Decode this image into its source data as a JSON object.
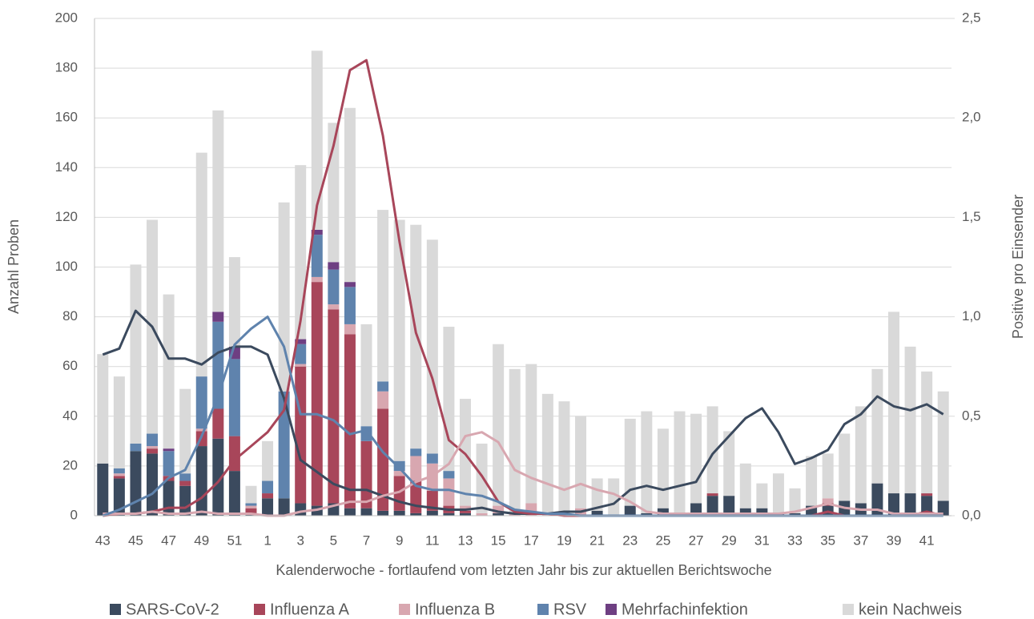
{
  "chart_data": {
    "type": "bar",
    "stacked": true,
    "ylabel": "Anzahl Proben",
    "y2label": "Positive pro Einsender",
    "xlabel": "Kalenderwoche - fortlaufend vom letzten Jahr bis zur aktuellen Berichtswoche",
    "categories": [
      "43",
      null,
      "45",
      null,
      "47",
      null,
      "49",
      null,
      "51",
      null,
      "1",
      null,
      "3",
      null,
      "5",
      null,
      "7",
      null,
      "9",
      null,
      "11",
      null,
      "13",
      null,
      "15",
      null,
      "17",
      null,
      "19",
      null,
      "21",
      null,
      "23",
      null,
      "25",
      null,
      "27",
      null,
      "29",
      null,
      "31",
      null,
      "33",
      null,
      "35",
      null,
      "37",
      null,
      "39",
      null,
      "41",
      null
    ],
    "ylim": [
      0,
      200
    ],
    "yticks": [
      0,
      20,
      40,
      60,
      80,
      100,
      120,
      140,
      160,
      180,
      200
    ],
    "y2lim": [
      0,
      2.5
    ],
    "y2ticks": [
      {
        "value": 0,
        "label": "0,0"
      },
      {
        "value": 0.5,
        "label": "0,5"
      },
      {
        "value": 1,
        "label": "1,0"
      },
      {
        "value": 1.5,
        "label": "1,5"
      },
      {
        "value": 2,
        "label": "2,0"
      },
      {
        "value": 2.5,
        "label": "2,5"
      }
    ],
    "grid": true,
    "legend": "bottom",
    "series": [
      {
        "name": "SARS-CoV-2",
        "color": "#3b4a5e",
        "values": [
          21,
          15,
          26,
          25,
          14,
          12,
          28,
          31,
          18,
          1,
          7,
          7,
          5,
          4,
          5,
          3,
          3,
          2,
          2,
          1,
          2,
          1,
          1,
          0,
          1,
          0,
          0,
          0,
          1,
          0,
          2,
          0,
          4,
          1,
          3,
          1,
          5,
          8,
          8,
          3,
          3,
          1,
          1,
          4,
          4,
          6,
          5,
          13,
          9,
          9,
          8,
          6
        ]
      },
      {
        "name": "Influenza A",
        "color": "#a8465a",
        "values": [
          0,
          1,
          0,
          2,
          2,
          2,
          6,
          12,
          14,
          2,
          2,
          0,
          55,
          90,
          78,
          70,
          27,
          41,
          14,
          13,
          8,
          3,
          1,
          0,
          0,
          0,
          0,
          0,
          0,
          0,
          0,
          0,
          0,
          0,
          0,
          0,
          0,
          1,
          0,
          0,
          0,
          0,
          0,
          0,
          1,
          0,
          0,
          0,
          0,
          0,
          1,
          0
        ]
      },
      {
        "name": "Influenza B",
        "color": "#d8a7b0",
        "values": [
          0,
          1,
          0,
          1,
          0,
          0,
          1,
          0,
          0,
          1,
          0,
          0,
          1,
          2,
          2,
          4,
          0,
          7,
          2,
          10,
          11,
          11,
          2,
          1,
          3,
          1,
          5,
          1,
          0,
          3,
          0,
          0,
          0,
          0,
          0,
          0,
          0,
          0,
          0,
          0,
          0,
          0,
          0,
          0,
          2,
          0,
          0,
          0,
          0,
          0,
          0,
          0
        ]
      },
      {
        "name": "RSV",
        "color": "#5f83ad",
        "values": [
          0,
          2,
          3,
          5,
          10,
          3,
          21,
          35,
          31,
          1,
          5,
          43,
          8,
          17,
          14,
          15,
          6,
          4,
          4,
          3,
          4,
          3,
          0,
          0,
          0,
          0,
          0,
          0,
          0,
          0,
          0,
          0,
          0,
          0,
          0,
          0,
          0,
          0,
          0,
          0,
          0,
          0,
          0,
          0,
          0,
          0,
          0,
          0,
          0,
          0,
          0,
          0
        ]
      },
      {
        "name": "Mehrfachinfektion",
        "color": "#6e3f82",
        "values": [
          0,
          0,
          0,
          0,
          1,
          0,
          0,
          4,
          5,
          0,
          0,
          0,
          2,
          2,
          3,
          2,
          0,
          0,
          0,
          0,
          0,
          0,
          0,
          0,
          0,
          0,
          0,
          0,
          0,
          0,
          0,
          0,
          0,
          0,
          0,
          0,
          0,
          0,
          0,
          0,
          0,
          0,
          0,
          0,
          0,
          0,
          0,
          0,
          0,
          0,
          0,
          0
        ]
      },
      {
        "name": "kein Nachweis",
        "color": "#d9d9d9",
        "values": [
          44,
          37,
          72,
          86,
          62,
          34,
          90,
          81,
          36,
          7,
          16,
          76,
          70,
          72,
          56,
          70,
          41,
          69,
          97,
          90,
          86,
          58,
          43,
          28,
          65,
          58,
          56,
          48,
          45,
          37,
          13,
          15,
          35,
          41,
          32,
          41,
          36,
          35,
          26,
          18,
          10,
          16,
          10,
          20,
          18,
          27,
          39,
          46,
          73,
          59,
          49,
          44
        ]
      }
    ],
    "lines": [
      {
        "color": "#3b4a5e",
        "axis": "y2",
        "values": [
          0.81,
          0.84,
          1.03,
          0.95,
          0.79,
          0.79,
          0.76,
          0.82,
          0.85,
          0.85,
          0.81,
          0.59,
          0.28,
          0.22,
          0.16,
          0.13,
          0.13,
          0.1,
          0.07,
          0.05,
          0.04,
          0.03,
          0.03,
          0.04,
          0.02,
          0.01,
          0.01,
          0.01,
          0.02,
          0.02,
          0.04,
          0.06,
          0.13,
          0.15,
          0.13,
          0.15,
          0.17,
          0.31,
          0.4,
          0.49,
          0.54,
          0.42,
          0.26,
          0.29,
          0.33,
          0.46,
          0.51,
          0.6,
          0.55,
          0.53,
          0.56,
          0.51
        ]
      },
      {
        "color": "#a8465a",
        "axis": "y2",
        "values": [
          0,
          0.01,
          0.01,
          0.02,
          0.04,
          0.04,
          0.09,
          0.17,
          0.28,
          0.35,
          0.42,
          0.53,
          0.98,
          1.56,
          1.86,
          2.24,
          2.29,
          1.91,
          1.38,
          0.92,
          0.69,
          0.38,
          0.31,
          0.2,
          0.07,
          0.02,
          0.01,
          0.01,
          0,
          0,
          0,
          0,
          0,
          0,
          0,
          0,
          0,
          0,
          0,
          0,
          0,
          0,
          0,
          0,
          0.02,
          0,
          0,
          0,
          0,
          0,
          0.02,
          0
        ]
      },
      {
        "color": "#d8a7b0",
        "axis": "y2",
        "values": [
          0.01,
          0.01,
          0.01,
          0.02,
          0.01,
          0.01,
          0.02,
          0.01,
          0.01,
          0.01,
          0,
          0,
          0.02,
          0.03,
          0.05,
          0.07,
          0.07,
          0.1,
          0.12,
          0.17,
          0.2,
          0.26,
          0.4,
          0.42,
          0.37,
          0.23,
          0.19,
          0.16,
          0.13,
          0.16,
          0.13,
          0.11,
          0.07,
          0.02,
          0.01,
          0.01,
          0.01,
          0.01,
          0.01,
          0.01,
          0.01,
          0.01,
          0.02,
          0.04,
          0.06,
          0.04,
          0.03,
          0.03,
          0.01,
          0.01,
          0.01,
          0.01
        ]
      },
      {
        "color": "#5f83ad",
        "axis": "y2",
        "values": [
          0,
          0.03,
          0.07,
          0.11,
          0.19,
          0.23,
          0.4,
          0.6,
          0.86,
          0.94,
          1,
          0.85,
          0.51,
          0.51,
          0.48,
          0.41,
          0.43,
          0.32,
          0.24,
          0.15,
          0.13,
          0.13,
          0.11,
          0.1,
          0.07,
          0.03,
          0.02,
          0.01,
          0.01,
          0,
          0,
          0,
          0,
          0,
          0,
          0,
          0,
          0,
          0,
          0,
          0,
          0,
          0,
          0,
          0,
          0,
          0,
          0,
          0,
          0,
          0,
          0
        ]
      }
    ]
  }
}
